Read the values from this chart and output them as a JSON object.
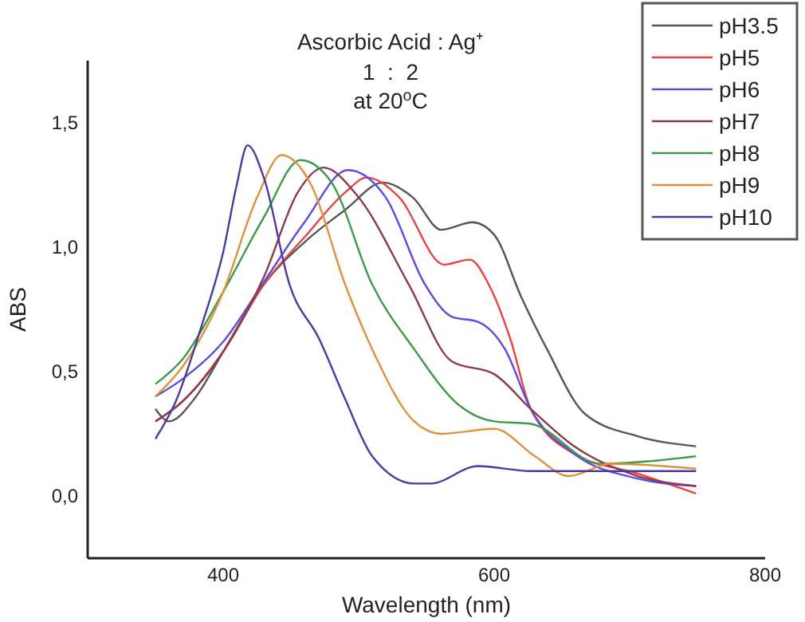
{
  "chart_data": {
    "type": "line",
    "title": "Ascorbic Acid : Ag⁺",
    "subtitle": "1  :  2\nat 20$^{o}$C",
    "xlabel": "Wavelength (nm)",
    "ylabel": "ABS",
    "xlim": [
      300,
      800
    ],
    "ylim": [
      -0.25,
      1.75
    ],
    "xticks": [
      400,
      600,
      800
    ],
    "yticks": [
      {
        "value": 0,
        "label": "0,0"
      },
      {
        "value": 0.5,
        "label": "0,5"
      },
      {
        "value": 1,
        "label": "1,0"
      },
      {
        "value": 1.5,
        "label": "1,5"
      }
    ],
    "legend": "top right",
    "grid": false,
    "line_style": "solid",
    "marker": "none",
    "series": [
      {
        "name": "pH3.5",
        "color": "#555555",
        "x": [
          350,
          360,
          380,
          400,
          430,
          460,
          490,
          518,
          540,
          561,
          584,
          600,
          620,
          639,
          667,
          706,
          749
        ],
        "values": [
          0.35,
          0.3,
          0.4,
          0.58,
          0.85,
          1.02,
          1.15,
          1.26,
          1.2,
          1.07,
          1.1,
          1.05,
          0.8,
          0.59,
          0.33,
          0.24,
          0.2
        ]
      },
      {
        "name": "pH5",
        "color": "#e8413e",
        "x": [
          350,
          370,
          400,
          430,
          460,
          490,
          506,
          530,
          563,
          582,
          596,
          612,
          627,
          659,
          706,
          749
        ],
        "values": [
          0.3,
          0.38,
          0.58,
          0.85,
          1.04,
          1.22,
          1.28,
          1.2,
          0.93,
          0.95,
          0.85,
          0.63,
          0.35,
          0.17,
          0.09,
          0.01
        ]
      },
      {
        "name": "pH6",
        "color": "#5b4be0",
        "x": [
          350,
          370,
          400,
          430,
          460,
          492,
          520,
          549,
          569,
          588,
          608,
          627,
          659,
          706,
          749
        ],
        "values": [
          0.4,
          0.47,
          0.62,
          0.86,
          1.1,
          1.31,
          1.2,
          0.85,
          0.72,
          0.7,
          0.59,
          0.35,
          0.17,
          0.07,
          0.04
        ]
      },
      {
        "name": "pH7",
        "color": "#8b3a4a",
        "x": [
          350,
          370,
          400,
          430,
          455,
          474,
          500,
          537,
          569,
          600,
          627,
          659,
          706,
          749
        ],
        "values": [
          0.3,
          0.38,
          0.58,
          0.88,
          1.22,
          1.32,
          1.2,
          0.85,
          0.54,
          0.49,
          0.35,
          0.2,
          0.08,
          0.04
        ]
      },
      {
        "name": "pH8",
        "color": "#3a9a4a",
        "x": [
          350,
          370,
          400,
          430,
          457,
          480,
          510,
          541,
          573,
          600,
          627,
          678,
          749
        ],
        "values": [
          0.45,
          0.55,
          0.82,
          1.12,
          1.35,
          1.26,
          0.85,
          0.59,
          0.37,
          0.3,
          0.29,
          0.13,
          0.16
        ]
      },
      {
        "name": "pH9",
        "color": "#e0913a",
        "x": [
          350,
          370,
          400,
          425,
          443,
          465,
          490,
          510,
          541,
          561,
          600,
          630,
          655,
          686,
          749
        ],
        "values": [
          0.4,
          0.52,
          0.82,
          1.2,
          1.37,
          1.25,
          0.85,
          0.59,
          0.3,
          0.25,
          0.27,
          0.16,
          0.08,
          0.13,
          0.11
        ]
      },
      {
        "name": "pH10",
        "color": "#4a3aa0",
        "x": [
          350,
          365,
          385,
          400,
          410,
          418,
          430,
          449,
          471,
          490,
          510,
          541,
          553,
          588,
          627,
          749
        ],
        "values": [
          0.23,
          0.38,
          0.7,
          0.98,
          1.25,
          1.41,
          1.28,
          0.85,
          0.63,
          0.39,
          0.16,
          0.05,
          0.05,
          0.12,
          0.1,
          0.1
        ]
      }
    ]
  }
}
